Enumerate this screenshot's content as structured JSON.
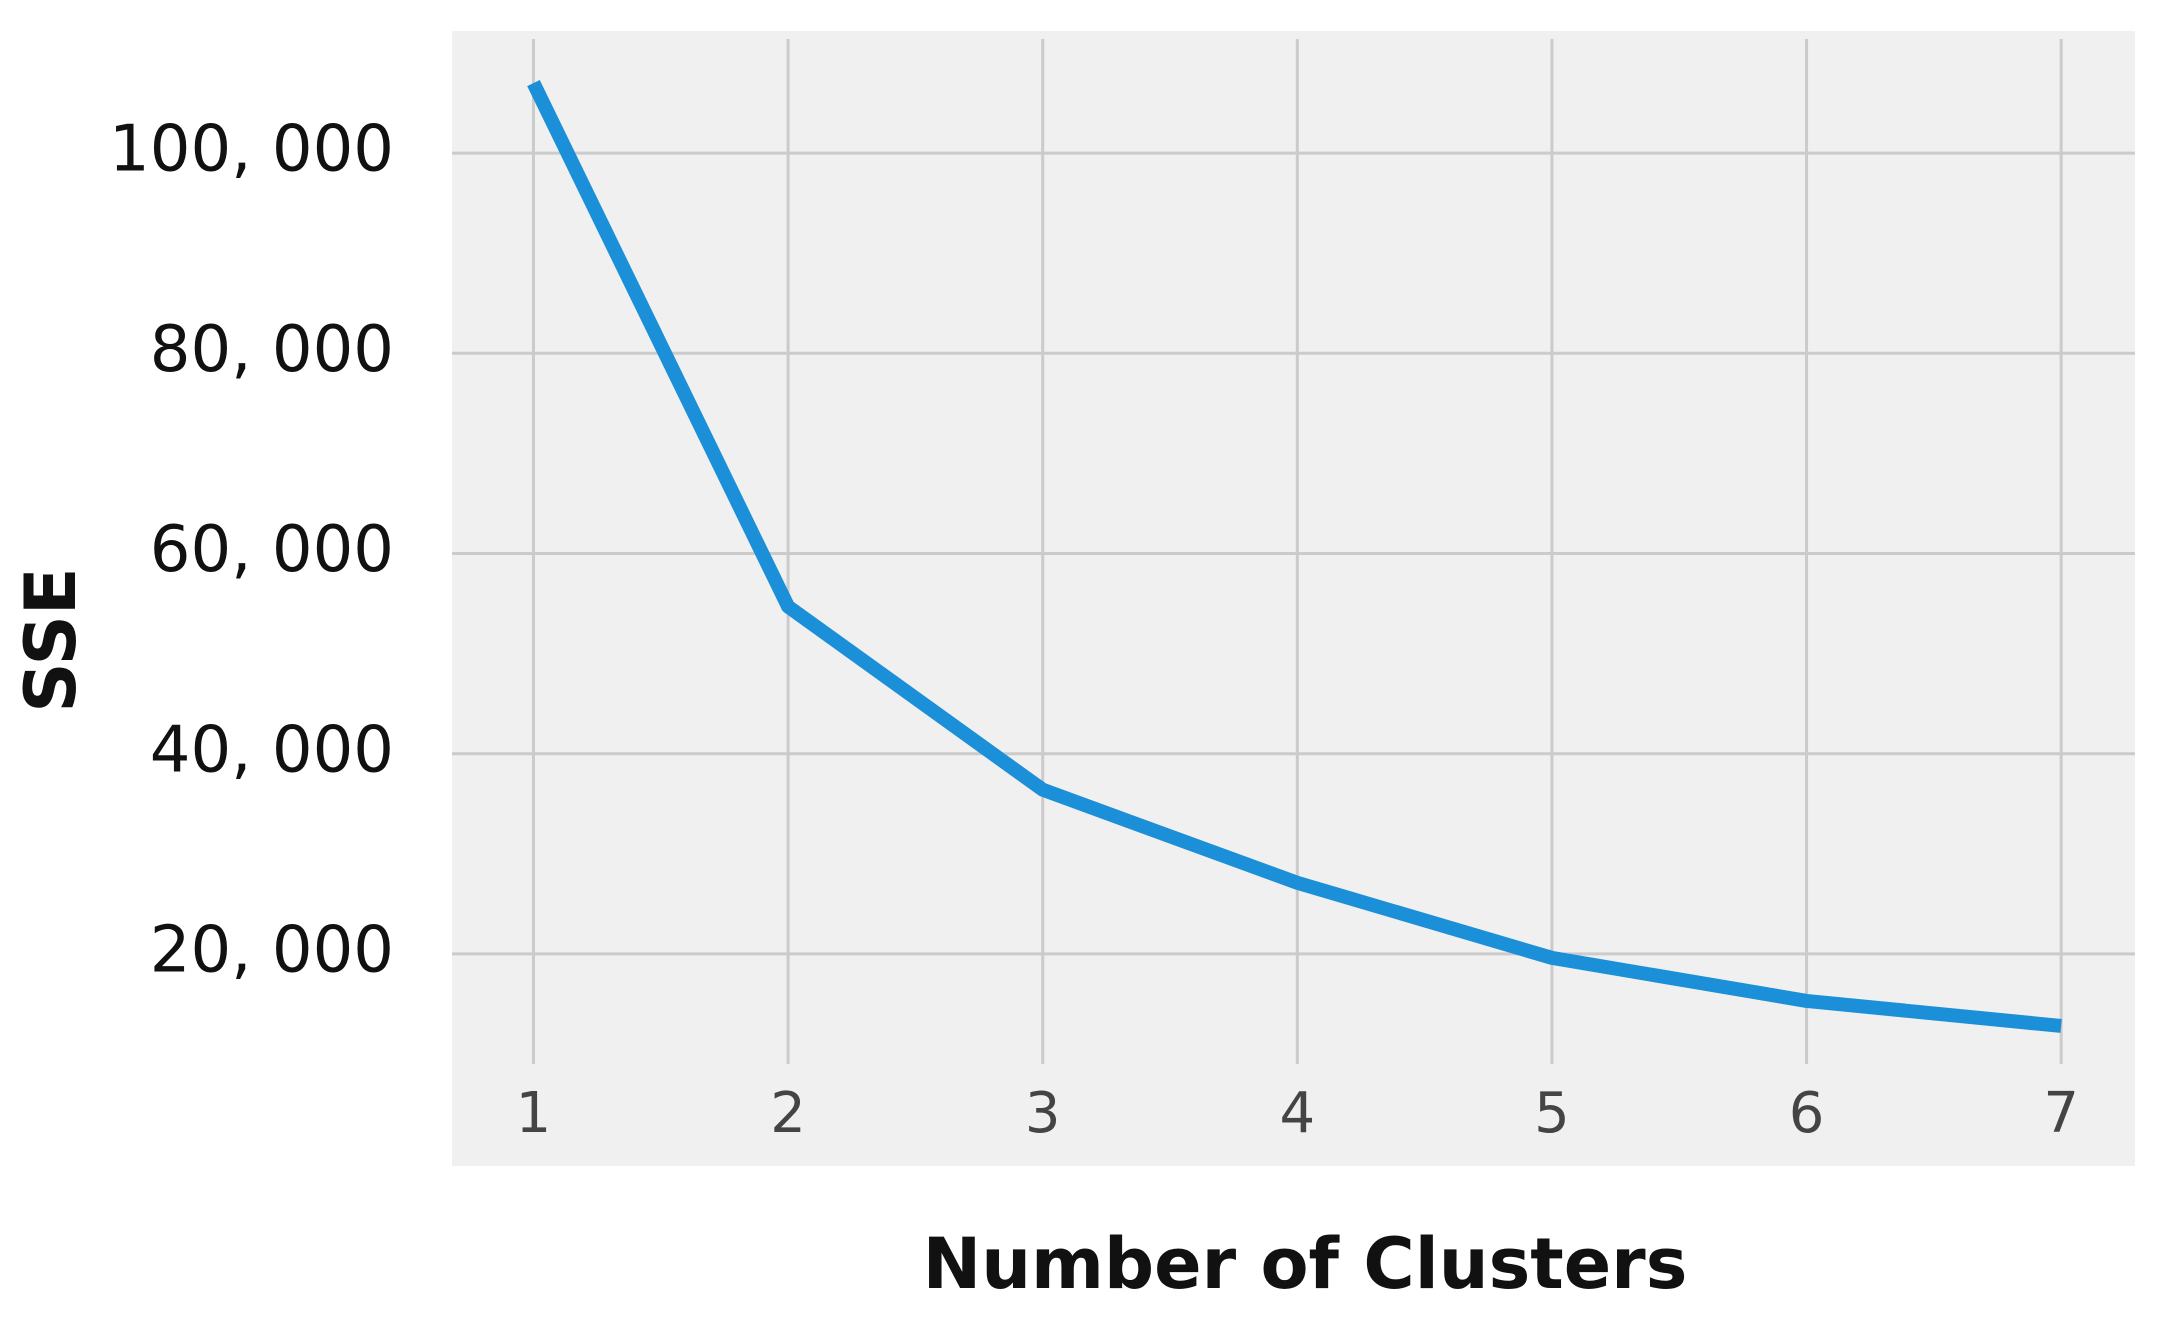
{
  "chart_data": {
    "type": "line",
    "x_label": "Number of Clusters",
    "y_label": "SSE",
    "x": [
      1,
      2,
      3,
      4,
      5,
      6,
      7
    ],
    "series": [
      {
        "name": "SSE",
        "color": "#1b8fd8",
        "values": [
          107000,
          54700,
          36400,
          27100,
          19600,
          15300,
          12800
        ]
      }
    ],
    "xlim": [
      0.68,
      7.29
    ],
    "xticks": [
      1,
      2,
      3,
      4,
      5,
      6,
      7
    ],
    "ylim": [
      9000,
      111400
    ],
    "yticks": [
      {
        "value": 20000,
        "label": "20, 000"
      },
      {
        "value": 40000,
        "label": "40, 000"
      },
      {
        "value": 60000,
        "label": "60, 000"
      },
      {
        "value": 80000,
        "label": "80, 000"
      },
      {
        "value": 100000,
        "label": "100, 000"
      }
    ],
    "grid": true
  }
}
